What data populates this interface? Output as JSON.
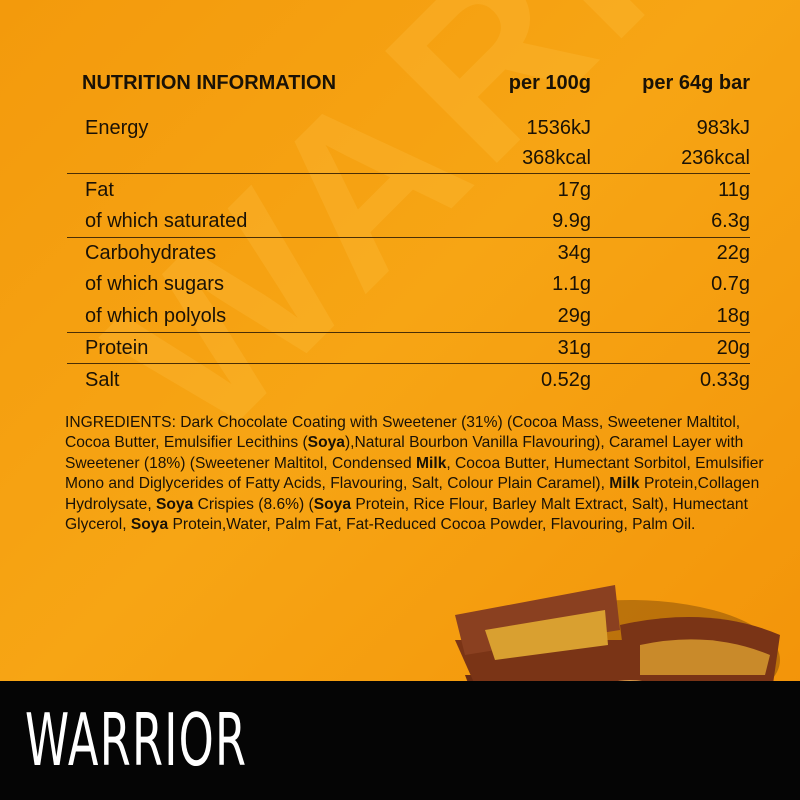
{
  "table": {
    "title": "NUTRITION INFORMATION",
    "col1": "per 100g",
    "col2": "per 64g bar",
    "rows": [
      {
        "label": "Energy",
        "v1": "1536kJ",
        "v2": "983kJ"
      },
      {
        "label": "",
        "v1": "368kcal",
        "v2": "236kcal"
      },
      {
        "label": "Fat",
        "v1": "17g",
        "v2": "11g"
      },
      {
        "label": "of which saturated",
        "v1": "9.9g",
        "v2": "6.3g"
      },
      {
        "label": "Carbohydrates",
        "v1": "34g",
        "v2": "22g"
      },
      {
        "label": "of which sugars",
        "v1": "1.1g",
        "v2": "0.7g"
      },
      {
        "label": "of which polyols",
        "v1": "29g",
        "v2": "18g"
      },
      {
        "label": "Protein",
        "v1": "31g",
        "v2": "20g"
      },
      {
        "label": "Salt",
        "v1": "0.52g",
        "v2": "0.33g"
      }
    ]
  },
  "ingredients": [
    {
      "t": "INGREDIENTS: Dark Chocolate Coating with Sweetener (31%) (Cocoa Mass, Sweetener Maltitol, Cocoa Butter, Emulsifier Lecithins (",
      "b": false
    },
    {
      "t": "Soya",
      "b": true
    },
    {
      "t": "),Natural Bourbon Vanilla Flavouring), Caramel Layer with Sweetener (18%) (Sweetener Maltitol, Condensed ",
      "b": false
    },
    {
      "t": "Milk",
      "b": true
    },
    {
      "t": ", Cocoa Butter, Humectant Sorbitol, Emulsifier Mono and Diglycerides of Fatty Acids, Flavouring, Salt, Colour Plain Caramel), ",
      "b": false
    },
    {
      "t": "Milk",
      "b": true
    },
    {
      "t": " Protein,Collagen Hydrolysate, ",
      "b": false
    },
    {
      "t": "Soya",
      "b": true
    },
    {
      "t": " Crispies (8.6%) (",
      "b": false
    },
    {
      "t": "Soya",
      "b": true
    },
    {
      "t": " Protein, Rice Flour, Barley Malt Extract, Salt), Humectant Glycerol, ",
      "b": false
    },
    {
      "t": "Soya",
      "b": true
    },
    {
      "t": " Protein,Water, Palm Fat, Fat-Reduced Cocoa Powder, Flavouring, Palm Oil.",
      "b": false
    }
  ],
  "brand": {
    "logo": "WARRIOR",
    "background": "#050505",
    "accent": "#f7a514"
  }
}
